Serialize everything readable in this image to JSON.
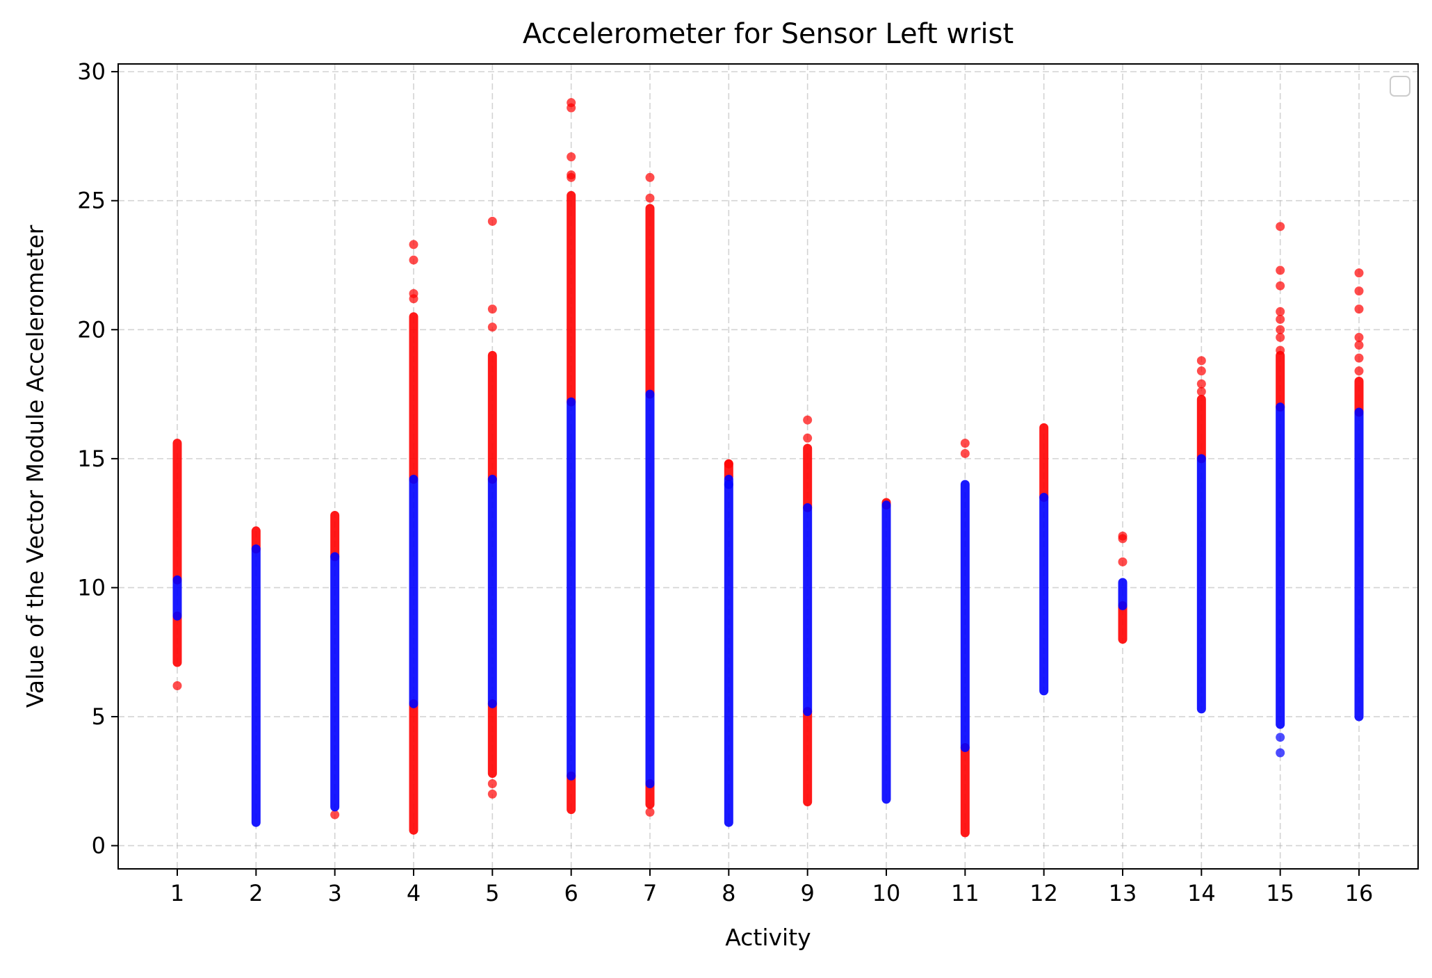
{
  "chart_data": {
    "type": "scatter",
    "title": "Accelerometer for Sensor Left wrist",
    "xlabel": "Activity",
    "ylabel": "Value of the Vector Module Accelerometer",
    "xlim": [
      0.25,
      16.75
    ],
    "ylim": [
      -0.9,
      30.3
    ],
    "xticks": [
      1,
      2,
      3,
      4,
      5,
      6,
      7,
      8,
      9,
      10,
      11,
      12,
      13,
      14,
      15,
      16
    ],
    "yticks": [
      0,
      5,
      10,
      15,
      20,
      25,
      30
    ],
    "grid": true,
    "legend": {
      "placement": "top-right",
      "entries": []
    },
    "colors": {
      "outlier": "#ff0000",
      "inlier": "#0000ff"
    },
    "series": [
      {
        "color": "outlier",
        "segments": [
          [
            1,
            10.3,
            15.6
          ],
          [
            1,
            7.1,
            8.9
          ],
          [
            2,
            11.5,
            12.2
          ],
          [
            3,
            11.2,
            12.8
          ],
          [
            4,
            14.2,
            20.5
          ],
          [
            4,
            0.6,
            5.5
          ],
          [
            5,
            14.2,
            19.0
          ],
          [
            5,
            2.8,
            5.5
          ],
          [
            6,
            17.2,
            25.2
          ],
          [
            6,
            1.4,
            2.7
          ],
          [
            7,
            17.5,
            24.7
          ],
          [
            7,
            1.6,
            2.4
          ],
          [
            8,
            14.3,
            14.8
          ],
          [
            9,
            13.1,
            15.4
          ],
          [
            9,
            1.7,
            5.2
          ],
          [
            10,
            13.2,
            13.3
          ],
          [
            11,
            0.5,
            3.8
          ],
          [
            12,
            13.5,
            16.2
          ],
          [
            13,
            8.0,
            9.3
          ],
          [
            14,
            15.0,
            17.3
          ],
          [
            15,
            17.0,
            19.0
          ],
          [
            16,
            16.8,
            18.0
          ]
        ],
        "points": [
          [
            1,
            6.2
          ],
          [
            3,
            1.2
          ],
          [
            4,
            21.2
          ],
          [
            4,
            21.4
          ],
          [
            4,
            22.7
          ],
          [
            4,
            23.3
          ],
          [
            5,
            20.1
          ],
          [
            5,
            20.8
          ],
          [
            5,
            24.2
          ],
          [
            5,
            2.0
          ],
          [
            5,
            2.4
          ],
          [
            6,
            25.9
          ],
          [
            6,
            26.0
          ],
          [
            6,
            26.7
          ],
          [
            6,
            28.6
          ],
          [
            6,
            28.8
          ],
          [
            7,
            25.1
          ],
          [
            7,
            25.9
          ],
          [
            7,
            1.3
          ],
          [
            8,
            14.8
          ],
          [
            9,
            15.8
          ],
          [
            9,
            16.5
          ],
          [
            11,
            15.2
          ],
          [
            11,
            15.6
          ],
          [
            13,
            11.0
          ],
          [
            13,
            11.9
          ],
          [
            13,
            12.0
          ],
          [
            14,
            17.6
          ],
          [
            14,
            17.9
          ],
          [
            14,
            18.4
          ],
          [
            14,
            18.8
          ],
          [
            15,
            19.2
          ],
          [
            15,
            19.7
          ],
          [
            15,
            20.0
          ],
          [
            15,
            20.4
          ],
          [
            15,
            20.7
          ],
          [
            15,
            21.7
          ],
          [
            15,
            22.3
          ],
          [
            15,
            24.0
          ],
          [
            16,
            18.4
          ],
          [
            16,
            18.9
          ],
          [
            16,
            19.4
          ],
          [
            16,
            19.7
          ],
          [
            16,
            20.8
          ],
          [
            16,
            21.5
          ],
          [
            16,
            22.2
          ]
        ]
      },
      {
        "color": "inlier",
        "segments": [
          [
            1,
            8.9,
            10.3
          ],
          [
            2,
            0.9,
            11.5
          ],
          [
            3,
            1.5,
            11.2
          ],
          [
            4,
            5.5,
            14.2
          ],
          [
            5,
            5.5,
            14.2
          ],
          [
            6,
            2.7,
            17.2
          ],
          [
            7,
            2.4,
            17.5
          ],
          [
            8,
            0.9,
            14.2
          ],
          [
            9,
            5.2,
            13.1
          ],
          [
            10,
            1.8,
            13.2
          ],
          [
            11,
            3.8,
            14.0
          ],
          [
            12,
            6.0,
            13.5
          ],
          [
            13,
            9.3,
            10.2
          ],
          [
            14,
            5.3,
            15.0
          ],
          [
            15,
            4.7,
            17.0
          ],
          [
            16,
            5.0,
            16.8
          ]
        ],
        "points": [
          [
            15,
            4.2
          ],
          [
            15,
            3.6
          ],
          [
            8,
            14.0
          ]
        ]
      }
    ]
  }
}
